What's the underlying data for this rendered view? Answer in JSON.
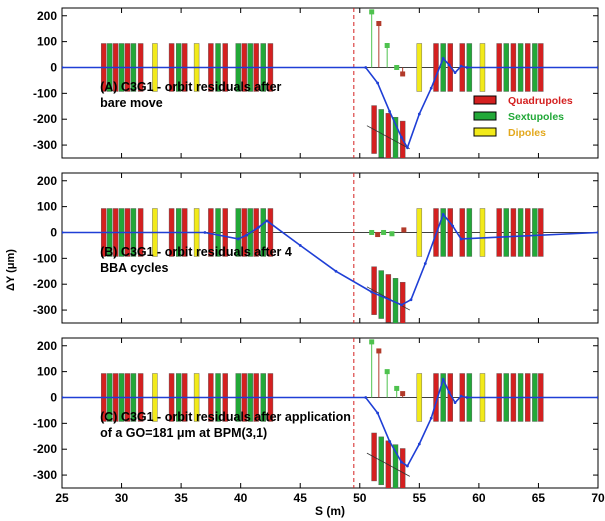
{
  "figure": {
    "xlabel": "S (m)",
    "ylabel": "ΔY (μm)",
    "legend": [
      {
        "name": "Quadrupoles",
        "fill": "#d42020",
        "text_color": "#d42020"
      },
      {
        "name": "Sextupoles",
        "fill": "#22a838",
        "text_color": "#22a838"
      },
      {
        "name": "Dipoles",
        "fill": "#f2ea1a",
        "text_color": "#e3a81c"
      }
    ],
    "legend_placement": "right side of panel A"
  },
  "colors": {
    "quad": "#d42020",
    "sext": "#22a838",
    "dipole": "#f2ea1a",
    "orbit": "#1f3fd6",
    "marker_line": "#d42020",
    "residual_red": "#b23a2a",
    "residual_green": "#4ec24e"
  },
  "chart_data": [
    {
      "type": "line",
      "annotation_lines": [
        "(A) C3G1 - orbit residuals after",
        "bare move"
      ],
      "xlim": [
        25,
        70
      ],
      "ylim": [
        -350,
        230
      ],
      "xticks": [
        25,
        30,
        35,
        40,
        45,
        50,
        55,
        60,
        65,
        70
      ],
      "yticks": [
        200,
        100,
        0,
        -100,
        -200,
        -300
      ],
      "show_xtick_labels": false,
      "vertical_marker_x": 49.5,
      "series": [
        {
          "x": [
            25,
            50.5,
            51.5,
            52.5,
            53.5,
            54,
            55,
            56,
            57,
            57.5,
            58,
            58.5,
            59,
            70
          ],
          "y": [
            0,
            0,
            -60,
            -170,
            -270,
            -310,
            -180,
            -80,
            35,
            10,
            -20,
            5,
            0,
            0
          ]
        }
      ],
      "stems": [
        {
          "x": 51.0,
          "y": 215,
          "color": "green"
        },
        {
          "x": 51.6,
          "y": 170,
          "color": "red"
        },
        {
          "x": 52.3,
          "y": 85,
          "color": "green"
        },
        {
          "x": 53.1,
          "y": 0,
          "color": "green"
        },
        {
          "x": 53.6,
          "y": -25,
          "color": "red"
        }
      ],
      "magnets_row": "zero",
      "moved_group_y": -270,
      "moved_group_slope": -15
    },
    {
      "type": "line",
      "annotation_lines": [
        "(B) C3G1 - orbit residuals after 4",
        "BBA cycles"
      ],
      "xlim": [
        25,
        70
      ],
      "ylim": [
        -350,
        230
      ],
      "xticks": [
        25,
        30,
        35,
        40,
        45,
        50,
        55,
        60,
        65,
        70
      ],
      "yticks": [
        200,
        100,
        0,
        -100,
        -200,
        -300
      ],
      "show_xtick_labels": false,
      "vertical_marker_x": 49.5,
      "series": [
        {
          "x": [
            25,
            37,
            39.8,
            40.5,
            41.5,
            42.2,
            45,
            48,
            51,
            53.5,
            54.3,
            55.5,
            57,
            57.8,
            58.5,
            70
          ],
          "y": [
            0,
            0,
            -25,
            -10,
            20,
            45,
            -50,
            -150,
            -230,
            -280,
            -260,
            -120,
            70,
            25,
            -25,
            0
          ]
        }
      ],
      "stems": [
        {
          "x": 51.0,
          "y": 0,
          "color": "green"
        },
        {
          "x": 51.5,
          "y": -8,
          "color": "red"
        },
        {
          "x": 52.0,
          "y": 0,
          "color": "green"
        },
        {
          "x": 52.7,
          "y": -5,
          "color": "green"
        },
        {
          "x": 53.7,
          "y": 10,
          "color": "red"
        }
      ],
      "magnets_row": "zero",
      "moved_group_y": -255,
      "moved_group_slope": -15
    },
    {
      "type": "line",
      "annotation_lines": [
        "(C) C3G1 - orbit residuals after application",
        "of a GO=181 μm at BPM(3,1)"
      ],
      "xlim": [
        25,
        70
      ],
      "ylim": [
        -350,
        230
      ],
      "xticks": [
        25,
        30,
        35,
        40,
        45,
        50,
        55,
        60,
        65,
        70
      ],
      "yticks": [
        200,
        100,
        0,
        -100,
        -200,
        -300
      ],
      "xtick_labels": [
        "25",
        "30",
        "35",
        "40",
        "45",
        "50",
        "55",
        "60",
        "65",
        "70"
      ],
      "show_xtick_labels": true,
      "vertical_marker_x": 49.5,
      "series": [
        {
          "x": [
            25,
            50.5,
            51.5,
            52.5,
            53.5,
            54,
            55,
            56,
            57,
            57.5,
            58,
            58.5,
            59,
            70
          ],
          "y": [
            0,
            0,
            -60,
            -170,
            -250,
            -265,
            -180,
            -80,
            70,
            20,
            -20,
            5,
            0,
            0
          ]
        }
      ],
      "stems": [
        {
          "x": 51.0,
          "y": 215,
          "color": "green"
        },
        {
          "x": 51.6,
          "y": 180,
          "color": "red"
        },
        {
          "x": 52.3,
          "y": 100,
          "color": "green"
        },
        {
          "x": 53.1,
          "y": 35,
          "color": "green"
        },
        {
          "x": 53.6,
          "y": 15,
          "color": "red"
        }
      ],
      "magnets_row": "zero",
      "moved_group_y": -260,
      "moved_group_slope": -15
    }
  ],
  "magnets": {
    "fixed_row": [
      {
        "s": 28.5,
        "t": "q"
      },
      {
        "s": 29.0,
        "t": "s"
      },
      {
        "s": 29.5,
        "t": "q"
      },
      {
        "s": 30.0,
        "t": "s"
      },
      {
        "s": 30.5,
        "t": "q"
      },
      {
        "s": 31.0,
        "t": "s"
      },
      {
        "s": 31.6,
        "t": "q"
      },
      {
        "s": 32.8,
        "t": "d"
      },
      {
        "s": 34.2,
        "t": "q"
      },
      {
        "s": 34.8,
        "t": "s"
      },
      {
        "s": 35.3,
        "t": "q"
      },
      {
        "s": 36.3,
        "t": "d"
      },
      {
        "s": 37.5,
        "t": "q"
      },
      {
        "s": 38.1,
        "t": "s"
      },
      {
        "s": 38.7,
        "t": "q"
      },
      {
        "s": 39.8,
        "t": "s"
      },
      {
        "s": 40.3,
        "t": "q"
      },
      {
        "s": 40.8,
        "t": "s"
      },
      {
        "s": 41.3,
        "t": "q"
      },
      {
        "s": 41.9,
        "t": "s"
      },
      {
        "s": 42.5,
        "t": "q"
      },
      {
        "s": 55.0,
        "t": "d"
      },
      {
        "s": 56.4,
        "t": "q"
      },
      {
        "s": 57.0,
        "t": "s"
      },
      {
        "s": 57.6,
        "t": "q"
      },
      {
        "s": 58.6,
        "t": "q"
      },
      {
        "s": 59.2,
        "t": "s"
      },
      {
        "s": 60.3,
        "t": "d"
      },
      {
        "s": 61.7,
        "t": "q"
      },
      {
        "s": 62.3,
        "t": "s"
      },
      {
        "s": 62.9,
        "t": "q"
      },
      {
        "s": 63.5,
        "t": "s"
      },
      {
        "s": 64.1,
        "t": "q"
      },
      {
        "s": 64.7,
        "t": "s"
      },
      {
        "s": 65.2,
        "t": "q"
      }
    ],
    "moved_group": [
      {
        "s": 51.2,
        "t": "q"
      },
      {
        "s": 51.8,
        "t": "s"
      },
      {
        "s": 52.4,
        "t": "q"
      },
      {
        "s": 53.0,
        "t": "s"
      },
      {
        "s": 53.6,
        "t": "q"
      }
    ]
  }
}
